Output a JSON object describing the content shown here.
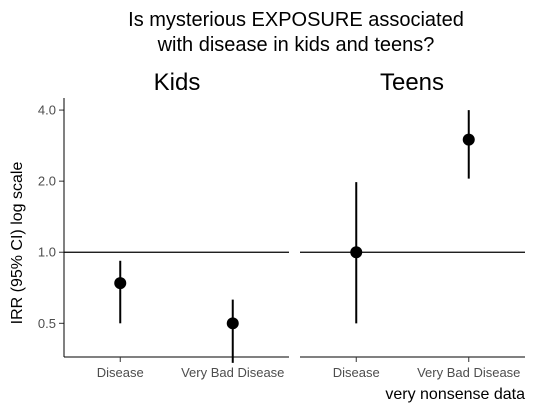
{
  "chart_data": {
    "type": "scatter",
    "title_lines": [
      "Is mysterious EXPOSURE associated",
      "with disease in kids and teens?"
    ],
    "xlabel": "very nonsense data",
    "ylabel": "IRR (95% CI) log scale",
    "y_scale": "log",
    "y_ticks": [
      0.5,
      1.0,
      2.0,
      4.0
    ],
    "y_tick_labels": [
      "0.5",
      "1.0",
      "2.0",
      "4.0"
    ],
    "ylim": [
      0.36,
      4.5
    ],
    "reference_line": 1.0,
    "categories": [
      "Disease",
      "Very Bad Disease"
    ],
    "panels": [
      {
        "name": "Kids",
        "points": [
          {
            "category": "Disease",
            "estimate": 0.74,
            "lower": 0.5,
            "upper": 0.92
          },
          {
            "category": "Very Bad Disease",
            "estimate": 0.5,
            "lower": 0.34,
            "upper": 0.63
          }
        ]
      },
      {
        "name": "Teens",
        "points": [
          {
            "category": "Disease",
            "estimate": 1.0,
            "lower": 0.5,
            "upper": 1.98
          },
          {
            "category": "Very Bad Disease",
            "estimate": 3.0,
            "lower": 2.05,
            "upper": 4.0
          }
        ]
      }
    ],
    "grid": false,
    "legend": "none"
  }
}
